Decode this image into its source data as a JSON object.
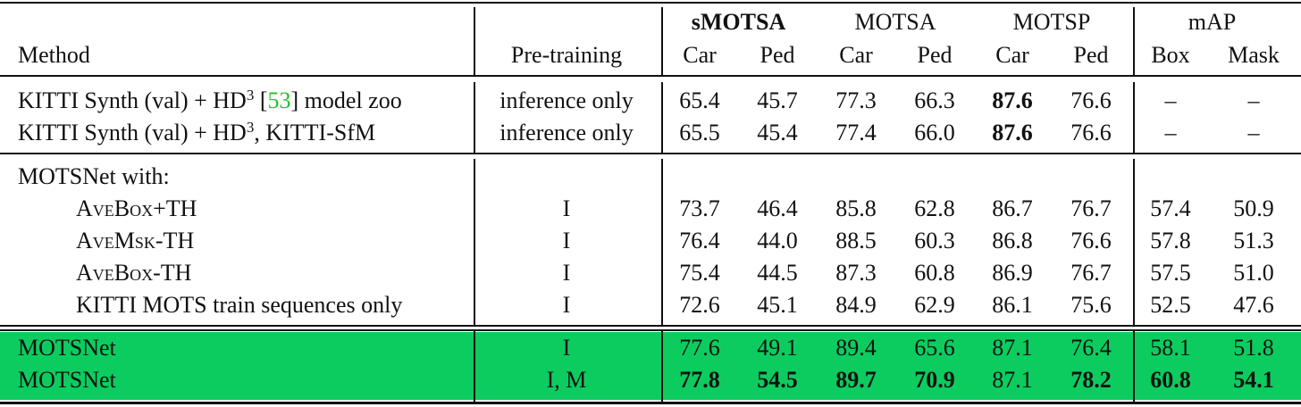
{
  "table": {
    "groups": [
      "sMOTSA",
      "MOTSA",
      "MOTSP",
      "mAP"
    ],
    "columns": [
      "Method",
      "Pre-training",
      "Car",
      "Ped",
      "Car",
      "Ped",
      "Car",
      "Ped",
      "Box",
      "Mask"
    ],
    "sections": [
      {
        "rows": [
          {
            "method": [
              "KITTI Synth (val) + HD",
              "3",
              " [",
              "53",
              "] model zoo"
            ],
            "pretraining": "inference only",
            "values": [
              "65.4",
              "45.7",
              "77.3",
              "66.3",
              "87.6",
              "76.6",
              "–",
              "–"
            ]
          },
          {
            "method": [
              "KITTI Synth (val) + HD",
              "3",
              ", KITTI-SfM"
            ],
            "pretraining": "inference only",
            "values": [
              "65.5",
              "45.4",
              "77.4",
              "66.0",
              "87.6",
              "76.6",
              "–",
              "–"
            ]
          }
        ]
      },
      {
        "title": "MOTSNet with:",
        "rows": [
          {
            "method": [
              "AveBox+TH"
            ],
            "pretraining": "I",
            "values": [
              "73.7",
              "46.4",
              "85.8",
              "62.8",
              "86.7",
              "76.7",
              "57.4",
              "50.9"
            ]
          },
          {
            "method": [
              "AveMsk-TH"
            ],
            "pretraining": "I",
            "values": [
              "76.4",
              "44.0",
              "88.5",
              "60.3",
              "86.8",
              "76.6",
              "57.8",
              "51.3"
            ]
          },
          {
            "method": [
              "AveBox-TH"
            ],
            "pretraining": "I",
            "values": [
              "75.4",
              "44.5",
              "87.3",
              "60.8",
              "86.9",
              "76.7",
              "57.5",
              "51.0"
            ]
          },
          {
            "method": [
              "KITTI MOTS train sequences only"
            ],
            "pretraining": "I",
            "values": [
              "72.6",
              "45.1",
              "84.9",
              "62.9",
              "86.1",
              "75.6",
              "52.5",
              "47.6"
            ]
          }
        ]
      },
      {
        "rows": [
          {
            "method": [
              "MOTSNet"
            ],
            "pretraining": "I",
            "values": [
              "77.6",
              "49.1",
              "89.4",
              "65.6",
              "87.1",
              "76.4",
              "58.1",
              "51.8"
            ]
          },
          {
            "method": [
              "MOTSNet"
            ],
            "pretraining": "I, M",
            "values": [
              "77.8",
              "54.5",
              "89.7",
              "70.9",
              "87.1",
              "78.2",
              "60.8",
              "54.1"
            ]
          }
        ]
      }
    ]
  }
}
